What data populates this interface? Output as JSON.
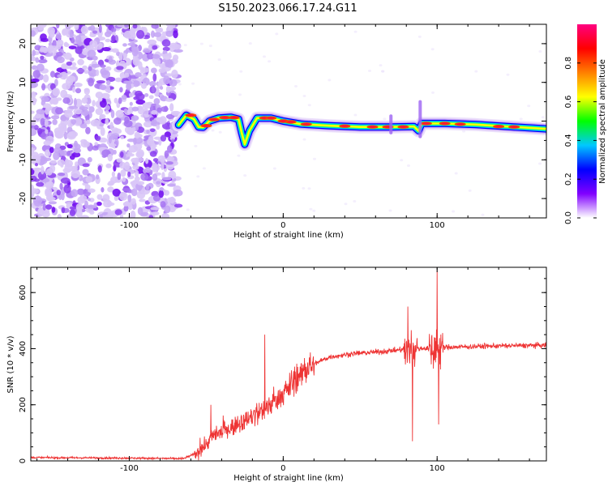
{
  "title": "S150.2023.066.17.24.G11",
  "chart_data": [
    {
      "type": "heatmap",
      "xlabel": "Height of straight line (km)",
      "ylabel": "Frequency (Hz)",
      "xlim": [
        -164,
        171
      ],
      "ylim": [
        -25,
        25
      ],
      "xticks": [
        -100,
        0,
        100
      ],
      "yticks": [
        -20,
        -10,
        0,
        10,
        20
      ],
      "noise_region_x": [
        -164,
        -68
      ],
      "ridge": [
        {
          "x": -68,
          "y": -1.0
        },
        {
          "x": -63,
          "y": 1.5
        },
        {
          "x": -58,
          "y": 0.5
        },
        {
          "x": -55,
          "y": -1.5
        },
        {
          "x": -52,
          "y": -1.6
        },
        {
          "x": -48,
          "y": 0.0
        },
        {
          "x": -42,
          "y": 0.8
        },
        {
          "x": -34,
          "y": 1.0
        },
        {
          "x": -29,
          "y": 0.5
        },
        {
          "x": -27,
          "y": -3.0
        },
        {
          "x": -25,
          "y": -6.0
        },
        {
          "x": -22,
          "y": -2.5
        },
        {
          "x": -17,
          "y": 0.8
        },
        {
          "x": -8,
          "y": 0.8
        },
        {
          "x": 0,
          "y": 0.0
        },
        {
          "x": 12,
          "y": -0.8
        },
        {
          "x": 30,
          "y": -1.2
        },
        {
          "x": 50,
          "y": -1.5
        },
        {
          "x": 70,
          "y": -1.5
        },
        {
          "x": 85,
          "y": -1.4
        },
        {
          "x": 88,
          "y": -2.5
        },
        {
          "x": 90,
          "y": -0.6
        },
        {
          "x": 105,
          "y": -0.6
        },
        {
          "x": 125,
          "y": -0.9
        },
        {
          "x": 150,
          "y": -1.5
        },
        {
          "x": 171,
          "y": -2.0
        }
      ],
      "colorbar": {
        "label": "Normalized spectral amplitude",
        "ticks": [
          "0.0",
          "0.2",
          "0.4",
          "0.6",
          "0.8"
        ],
        "range": [
          0,
          1
        ],
        "colors": [
          "#ffffff",
          "#8000ff",
          "#0000ff",
          "#00c8ff",
          "#00ff00",
          "#ffff00",
          "#ff8000",
          "#ff0000",
          "#ff0080"
        ]
      }
    },
    {
      "type": "line",
      "xlabel": "Height of straight line (km)",
      "ylabel": "SNR (10 * v/v)",
      "xlim": [
        -164,
        171
      ],
      "ylim": [
        0,
        690
      ],
      "xticks": [
        -100,
        0,
        100
      ],
      "yticks": [
        0,
        200,
        400,
        600
      ],
      "color": "#ee3333",
      "profile": [
        {
          "x": -164,
          "y": 12
        },
        {
          "x": -100,
          "y": 10
        },
        {
          "x": -65,
          "y": 8
        },
        {
          "x": -55,
          "y": 30
        },
        {
          "x": -45,
          "y": 90
        },
        {
          "x": -30,
          "y": 130
        },
        {
          "x": -15,
          "y": 170
        },
        {
          "x": 0,
          "y": 240
        },
        {
          "x": 10,
          "y": 300
        },
        {
          "x": 20,
          "y": 345
        },
        {
          "x": 30,
          "y": 370
        },
        {
          "x": 45,
          "y": 382
        },
        {
          "x": 65,
          "y": 390
        },
        {
          "x": 80,
          "y": 398
        },
        {
          "x": 105,
          "y": 405
        },
        {
          "x": 140,
          "y": 410
        },
        {
          "x": 171,
          "y": 412
        }
      ],
      "spikes": [
        {
          "x": -47,
          "y": 200
        },
        {
          "x": -12,
          "y": 450
        },
        {
          "x": 81,
          "y": 550
        },
        {
          "x": 84,
          "y": 70
        },
        {
          "x": 100,
          "y": 680
        },
        {
          "x": 101,
          "y": 130
        }
      ]
    }
  ]
}
